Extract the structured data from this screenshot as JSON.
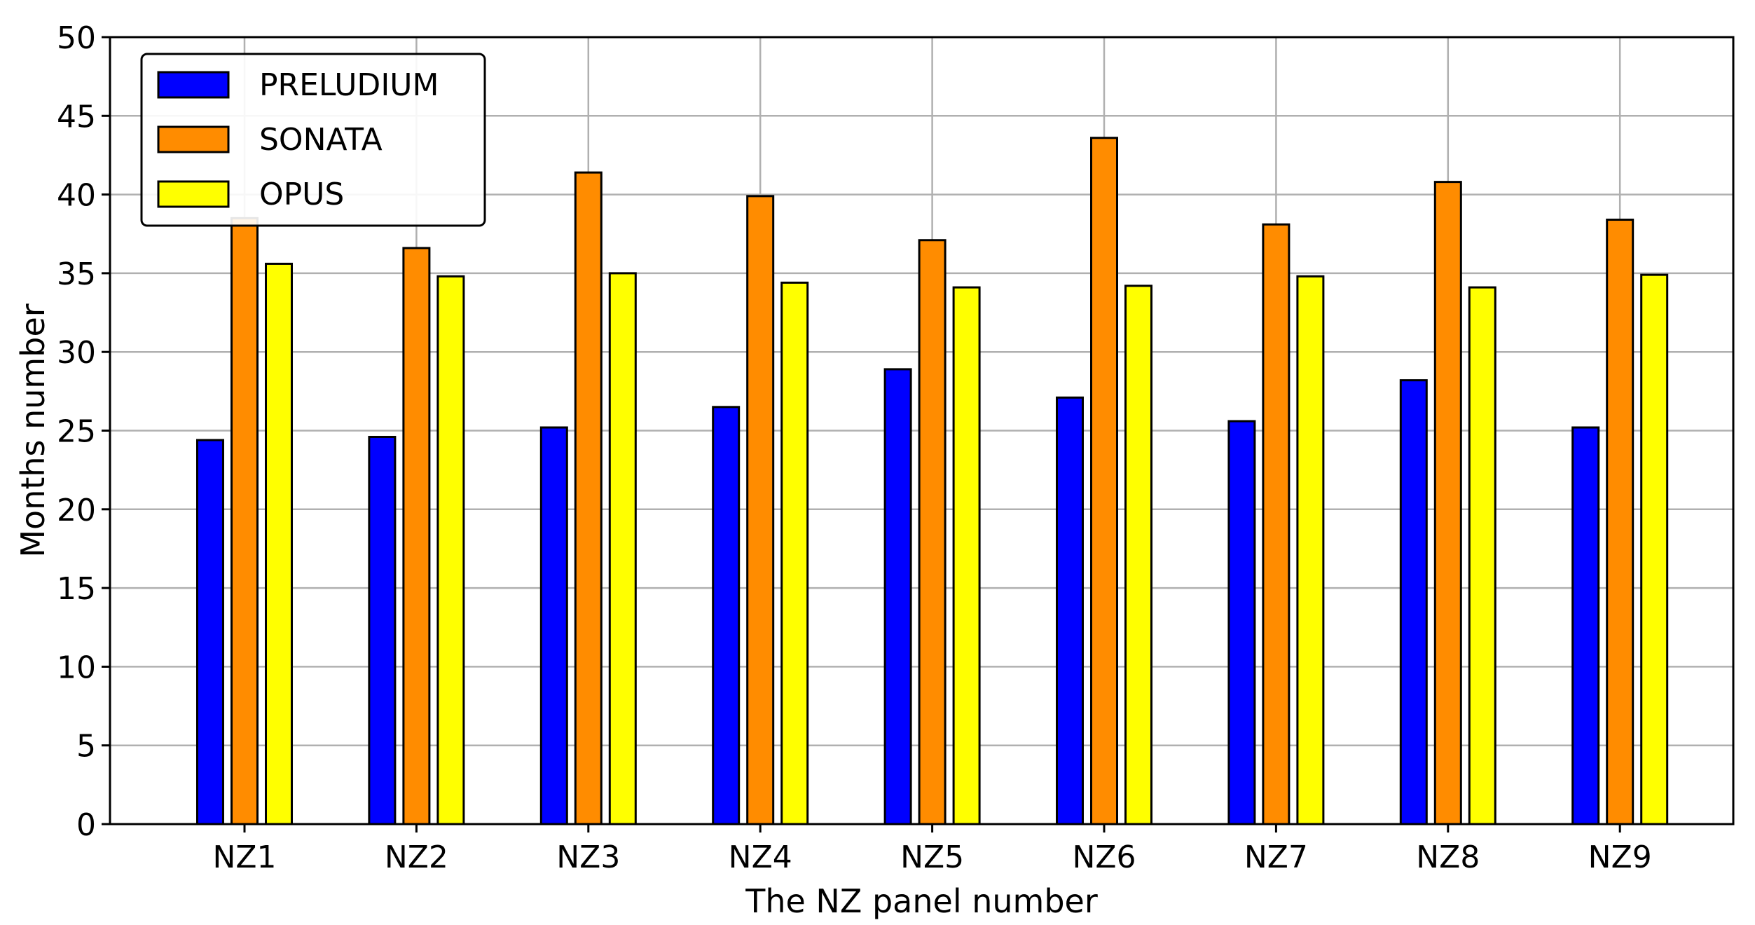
{
  "chart_data": {
    "type": "bar",
    "title": "",
    "xlabel": "The NZ panel number",
    "ylabel": "Months number",
    "ylim": [
      0,
      50
    ],
    "yticks": [
      0,
      5,
      10,
      15,
      20,
      25,
      30,
      35,
      40,
      45,
      50
    ],
    "categories": [
      "NZ1",
      "NZ2",
      "NZ3",
      "NZ4",
      "NZ5",
      "NZ6",
      "NZ7",
      "NZ8",
      "NZ9"
    ],
    "grid": true,
    "legend_position": "top-left",
    "series": [
      {
        "name": "PRELUDIUM",
        "color": "#0000ff",
        "values": [
          24.4,
          24.6,
          25.2,
          26.5,
          28.9,
          27.1,
          25.6,
          28.2,
          25.2
        ]
      },
      {
        "name": "SONATA",
        "color": "#ff8c00",
        "values": [
          38.5,
          36.6,
          41.4,
          39.9,
          37.1,
          43.6,
          38.1,
          40.8,
          38.4
        ]
      },
      {
        "name": "OPUS",
        "color": "#ffff00",
        "values": [
          35.6,
          34.8,
          35.0,
          34.4,
          34.1,
          34.2,
          34.8,
          34.1,
          34.9
        ]
      }
    ]
  }
}
